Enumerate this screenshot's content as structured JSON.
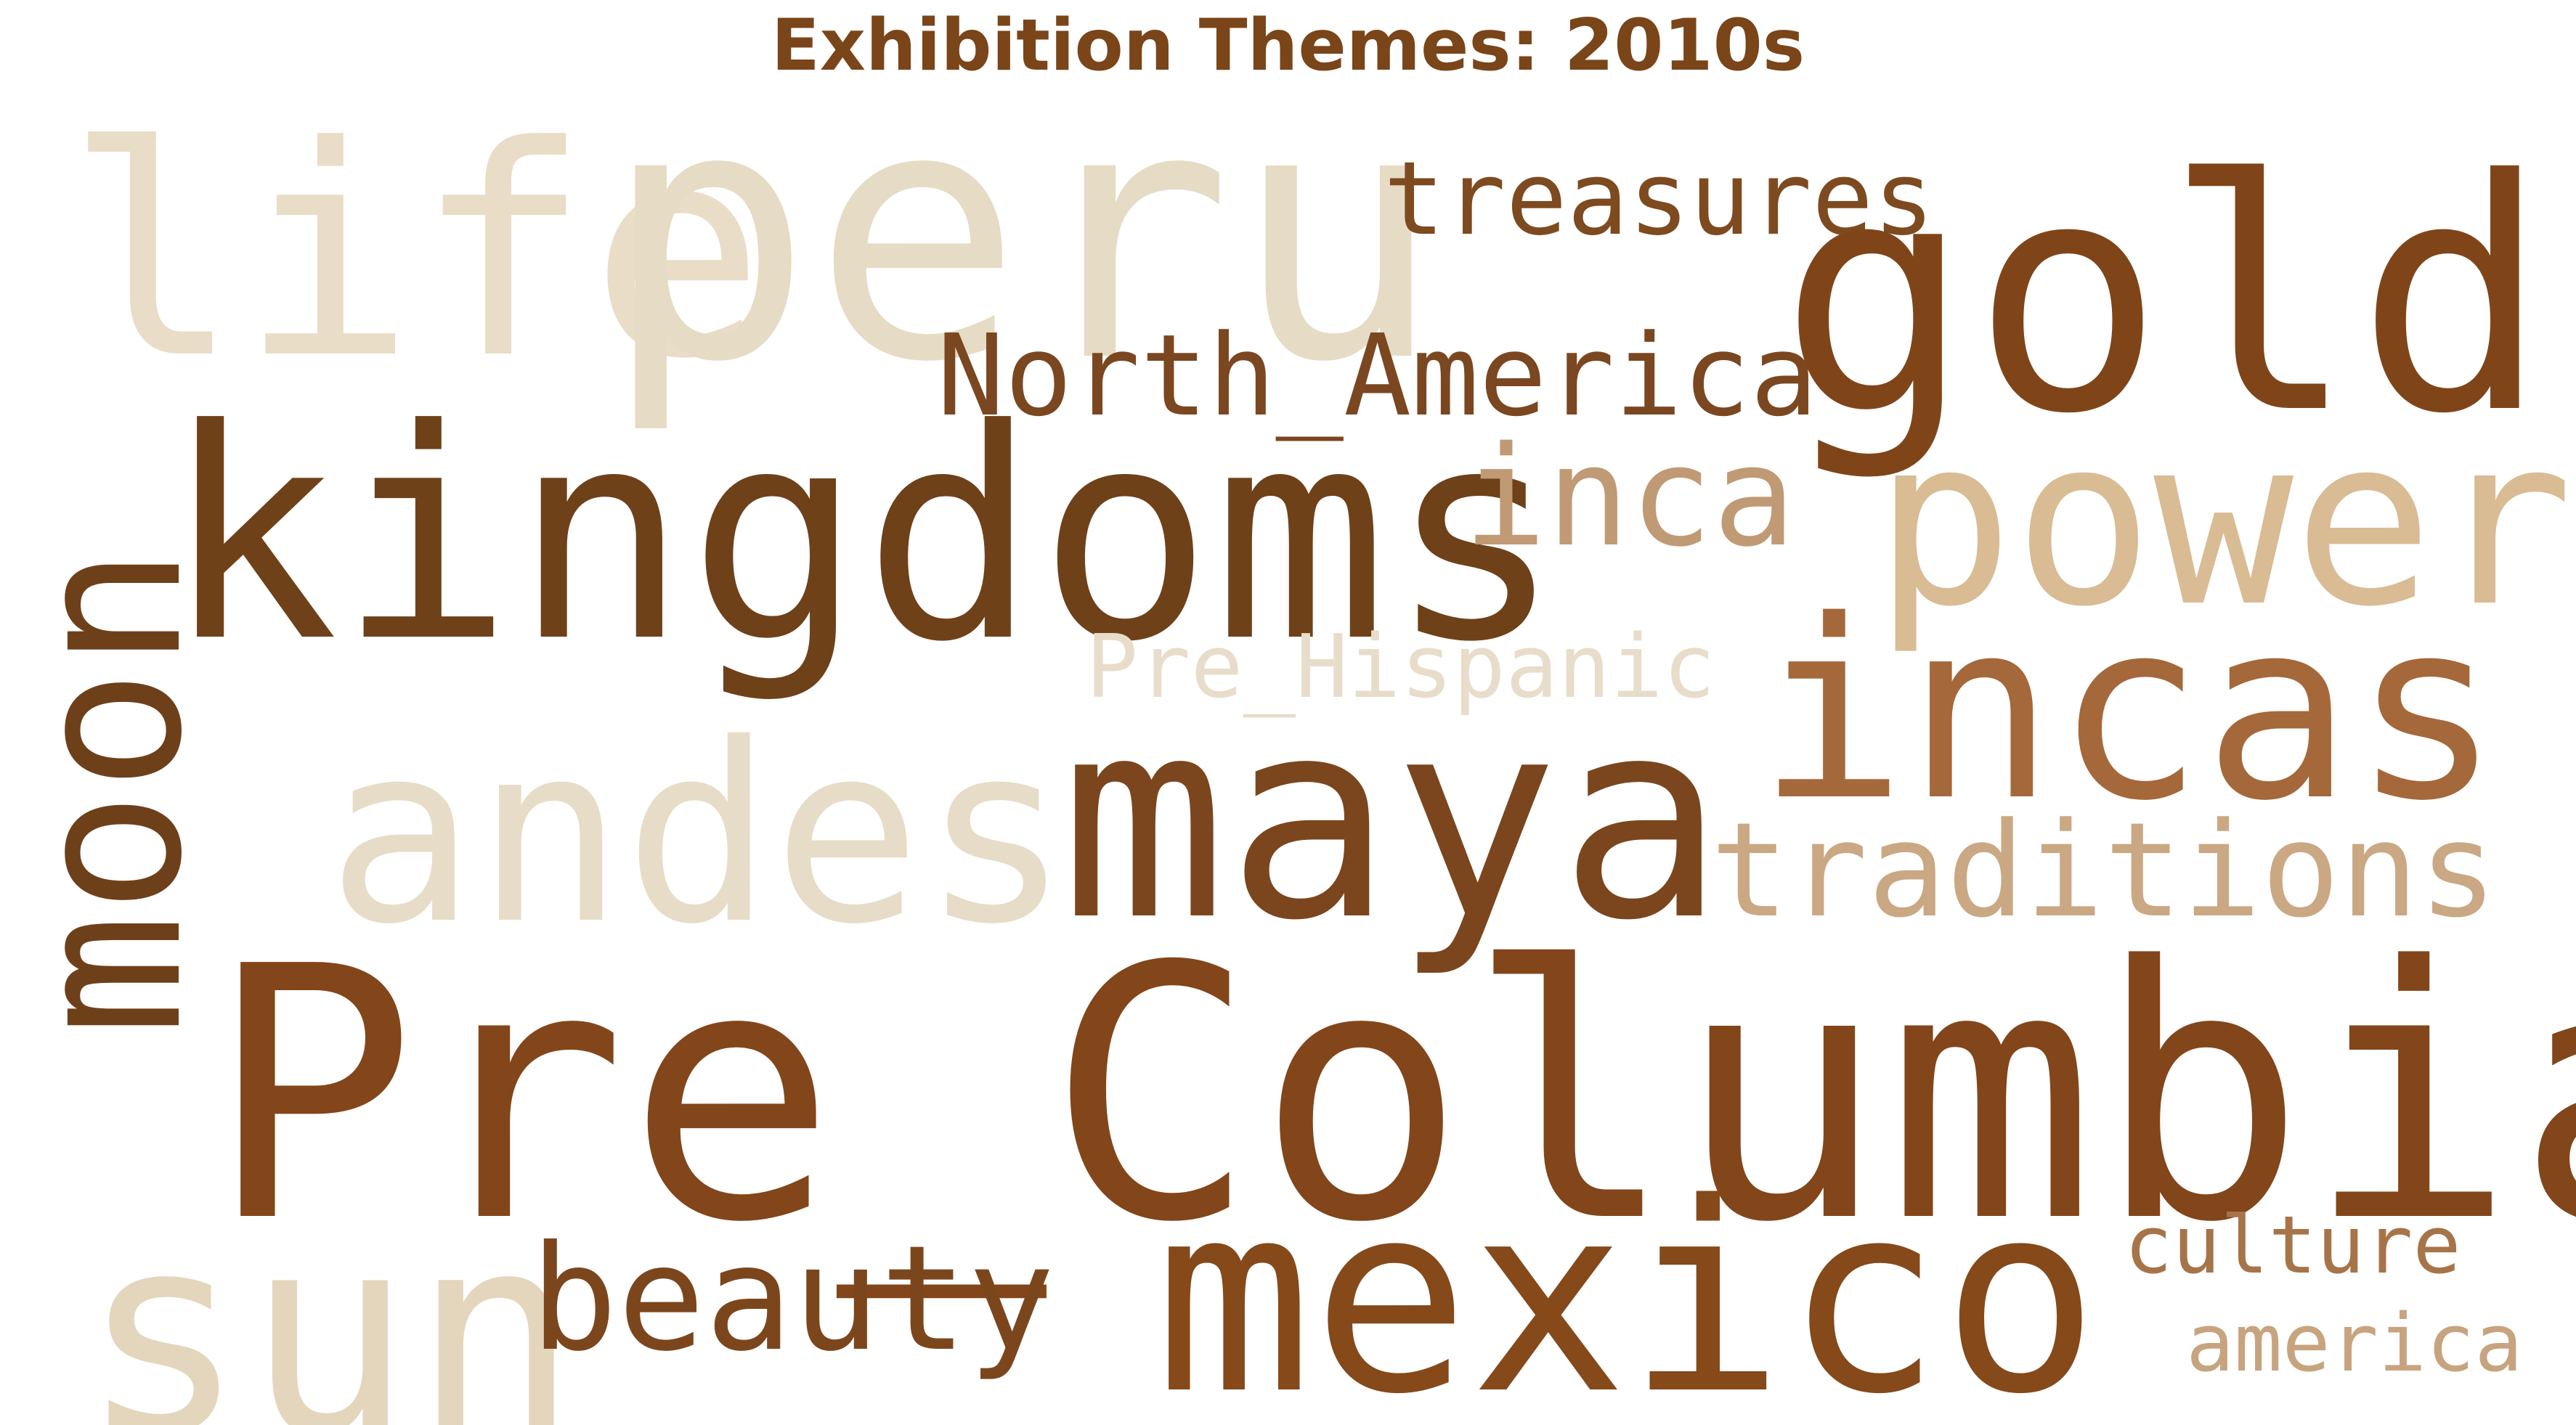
{
  "title": "Exhibition Themes: 2010s",
  "words": {
    "life": {
      "text": "life",
      "color": "#e9ddc8"
    },
    "peru": {
      "text": "peru",
      "color": "#e6dbc4"
    },
    "treasures": {
      "text": "treasures",
      "color": "#7e4a1f"
    },
    "gold": {
      "text": "gold",
      "color": "#7f4519"
    },
    "north_america": {
      "text": "North_America",
      "color": "#7b4720"
    },
    "kingdoms": {
      "text": "kingdoms",
      "color": "#6f4119"
    },
    "inca": {
      "text": "inca",
      "color": "#c09a74"
    },
    "power": {
      "text": "power",
      "color": "#d9bb94"
    },
    "pre_hispanic": {
      "text": "Pre_Hispanic",
      "color": "#e8ddca"
    },
    "incas": {
      "text": "incas",
      "color": "#a5683a"
    },
    "moon": {
      "text": "moon",
      "color": "#6e401a"
    },
    "andes": {
      "text": "andes",
      "color": "#e7dcc7"
    },
    "maya": {
      "text": "maya",
      "color": "#7b461d"
    },
    "traditions": {
      "text": "traditions",
      "color": "#caa883"
    },
    "pre_columbian": {
      "text": "Pre_Columbian",
      "color": "#82461a"
    },
    "sun": {
      "text": "sun",
      "color": "#e4d6bd"
    },
    "beauty": {
      "text": "beauty",
      "color": "#7c461d"
    },
    "mexico": {
      "text": "mexico",
      "color": "#85491a"
    },
    "culture": {
      "text": "culture",
      "color": "#a7744a"
    },
    "america": {
      "text": "america",
      "color": "#c7a47f"
    }
  }
}
